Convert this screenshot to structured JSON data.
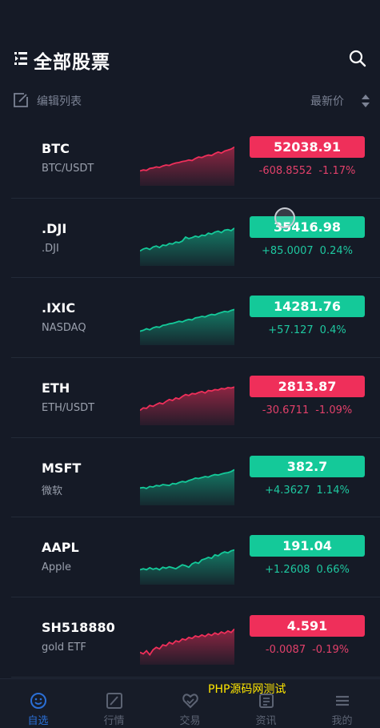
{
  "header": {
    "title": "全部股票",
    "menu_icon": "menu-icon",
    "search_icon": "search-icon"
  },
  "subbar": {
    "edit_label": "编辑列表",
    "sort_label": "最新价"
  },
  "colors": {
    "up": "#14c999",
    "down": "#ef2f5a",
    "background": "#151a26",
    "tab_active": "#2b6fd6"
  },
  "stocks": [
    {
      "symbol": "BTC",
      "name": "BTC/USDT",
      "price": "52038.91",
      "change": "-608.8552",
      "percent": "-1.17%",
      "direction": "down",
      "trend": [
        0.3,
        0.32,
        0.31,
        0.35,
        0.36,
        0.38,
        0.37,
        0.4,
        0.42,
        0.41,
        0.44,
        0.46,
        0.47,
        0.49,
        0.5,
        0.52,
        0.51,
        0.55,
        0.58,
        0.57,
        0.6,
        0.62,
        0.61,
        0.65,
        0.68,
        0.66,
        0.7,
        0.72,
        0.74,
        0.78
      ]
    },
    {
      "symbol": ".DJI",
      "name": ".DJI",
      "price": "35416.98",
      "change": "+85.0007",
      "percent": "0.24%",
      "direction": "up",
      "trend": [
        0.3,
        0.34,
        0.36,
        0.33,
        0.38,
        0.4,
        0.37,
        0.42,
        0.41,
        0.45,
        0.44,
        0.48,
        0.47,
        0.5,
        0.58,
        0.55,
        0.57,
        0.6,
        0.58,
        0.62,
        0.61,
        0.66,
        0.64,
        0.68,
        0.7,
        0.67,
        0.72,
        0.73,
        0.71,
        0.76
      ]
    },
    {
      "symbol": ".IXIC",
      "name": "NASDAQ",
      "price": "14281.76",
      "change": "+57.127",
      "percent": "0.4%",
      "direction": "up",
      "trend": [
        0.28,
        0.3,
        0.33,
        0.31,
        0.35,
        0.37,
        0.36,
        0.4,
        0.41,
        0.43,
        0.44,
        0.46,
        0.48,
        0.47,
        0.5,
        0.52,
        0.51,
        0.55,
        0.56,
        0.58,
        0.57,
        0.6,
        0.62,
        0.61,
        0.64,
        0.66,
        0.68,
        0.67,
        0.7,
        0.72
      ]
    },
    {
      "symbol": "ETH",
      "name": "ETH/USDT",
      "price": "2813.87",
      "change": "-30.6711",
      "percent": "-1.09%",
      "direction": "down",
      "trend": [
        0.3,
        0.35,
        0.34,
        0.4,
        0.38,
        0.42,
        0.45,
        0.43,
        0.48,
        0.52,
        0.5,
        0.55,
        0.53,
        0.58,
        0.62,
        0.6,
        0.64,
        0.63,
        0.66,
        0.68,
        0.65,
        0.7,
        0.69,
        0.72,
        0.71,
        0.74,
        0.73,
        0.76,
        0.75,
        0.77
      ]
    },
    {
      "symbol": "MSFT",
      "name": "微软",
      "price": "382.7",
      "change": "+4.3627",
      "percent": "1.14%",
      "direction": "up",
      "trend": [
        0.35,
        0.36,
        0.34,
        0.38,
        0.37,
        0.4,
        0.39,
        0.42,
        0.41,
        0.4,
        0.44,
        0.43,
        0.46,
        0.48,
        0.47,
        0.5,
        0.52,
        0.55,
        0.54,
        0.56,
        0.58,
        0.57,
        0.6,
        0.62,
        0.61,
        0.63,
        0.65,
        0.66,
        0.68,
        0.72
      ]
    },
    {
      "symbol": "AAPL",
      "name": "Apple",
      "price": "191.04",
      "change": "+1.2608",
      "percent": "0.66%",
      "direction": "up",
      "trend": [
        0.3,
        0.32,
        0.3,
        0.34,
        0.31,
        0.33,
        0.3,
        0.35,
        0.33,
        0.36,
        0.34,
        0.32,
        0.36,
        0.4,
        0.38,
        0.35,
        0.42,
        0.45,
        0.43,
        0.5,
        0.52,
        0.55,
        0.53,
        0.6,
        0.58,
        0.63,
        0.66,
        0.64,
        0.68,
        0.7
      ]
    },
    {
      "symbol": "SH518880",
      "name": "gold ETF",
      "price": "4.591",
      "change": "-0.0087",
      "percent": "-0.19%",
      "direction": "down",
      "trend": [
        0.25,
        0.22,
        0.28,
        0.2,
        0.3,
        0.35,
        0.32,
        0.4,
        0.38,
        0.45,
        0.42,
        0.48,
        0.46,
        0.52,
        0.5,
        0.55,
        0.53,
        0.58,
        0.56,
        0.6,
        0.57,
        0.62,
        0.59,
        0.64,
        0.61,
        0.66,
        0.63,
        0.68,
        0.65,
        0.72
      ]
    }
  ],
  "tabs": [
    {
      "label": "自选",
      "icon": "smile-icon",
      "active": true
    },
    {
      "label": "行情",
      "icon": "chart-icon",
      "active": false
    },
    {
      "label": "交易",
      "icon": "handshake-icon",
      "active": false
    },
    {
      "label": "资讯",
      "icon": "news-icon",
      "active": false
    },
    {
      "label": "我的",
      "icon": "profile-icon",
      "active": false
    }
  ],
  "watermark": "PHP源码网测试"
}
